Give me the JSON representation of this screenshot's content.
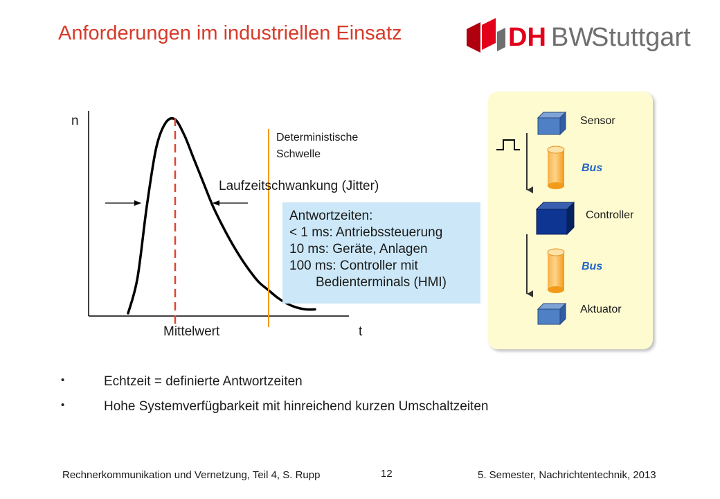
{
  "slide": {
    "title": "Anforderungen im industriellen Einsatz",
    "colors": {
      "title": "#d63a2a",
      "accent_red": "#e0452c",
      "accent_orange": "#f29a1a",
      "box_fill": "#cce8f8",
      "panel_fill": "#fffbd0",
      "bus_blue": "#1f64c8"
    }
  },
  "logo": {
    "dh": "DH",
    "bw": "BW",
    "city": "Stuttgart",
    "colors": {
      "dh": "#e2001a",
      "bw": "#6f6f6f",
      "city": "#6f6f6f",
      "mark_dark": "#b00010",
      "mark_light": "#6f6f6f"
    }
  },
  "chart": {
    "y_axis_label": "n",
    "x_axis_label": "t",
    "mean_label": "Mittelwert",
    "threshold_label_line1": "Deterministische",
    "threshold_label_line2": "Schwelle",
    "jitter_label": "Laufzeitschwankung (Jitter)"
  },
  "chart_data": {
    "type": "line",
    "title": "",
    "xlabel": "t",
    "ylabel": "n",
    "x": [
      0,
      1,
      2,
      3,
      4,
      5,
      6,
      7,
      8,
      9,
      10,
      11,
      12,
      13,
      14,
      15,
      16,
      17,
      18,
      19,
      20
    ],
    "series": [
      {
        "values": [
          0,
          18,
          55,
          85,
          98,
          100,
          92,
          80,
          68,
          56,
          46,
          37,
          29,
          22,
          16,
          12,
          8,
          5,
          3,
          2,
          2
        ]
      }
    ],
    "annotations": [
      "Mittelwert",
      "Deterministische Schwelle",
      "Laufzeitschwankung (Jitter)"
    ],
    "grid": false
  },
  "response_box": {
    "line1": "Antwortzeiten:",
    "line2": "< 1 ms: Antriebssteuerung",
    "line3": "10 ms: Geräte, Anlagen",
    "line4": "100 ms: Controller mit",
    "line5": "Bedienterminals (HMI)"
  },
  "panel": {
    "sensor": "Sensor",
    "bus1": "Bus",
    "controller": "Controller",
    "bus2": "Bus",
    "actuator": "Aktuator"
  },
  "bullets": [
    {
      "dot": "•",
      "text": "Echtzeit = definierte Antwortzeiten"
    },
    {
      "dot": "•",
      "text": "Hohe Systemverfügbarkeit mit hinreichend kurzen Umschaltzeiten"
    }
  ],
  "footer": {
    "left": "Rechnerkommunikation und Vernetzung, Teil 4, S. Rupp",
    "page": "12",
    "right": "5. Semester, Nachrichtentechnik, 2013"
  }
}
